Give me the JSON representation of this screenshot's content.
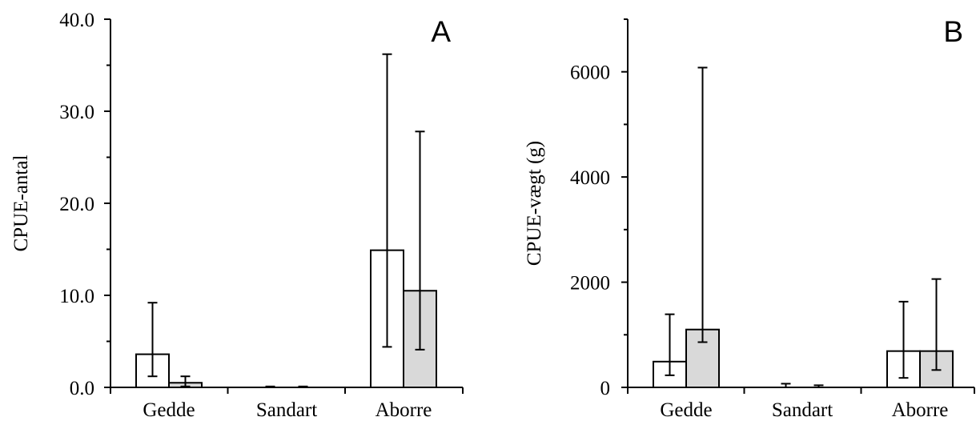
{
  "colors": {
    "series_1": "#ffffff",
    "series_2": "#d9d9d9",
    "stroke": "#000000"
  },
  "chart_data": [
    {
      "type": "bar",
      "panel_label": "A",
      "ylabel": "CPUE-antal",
      "xlabel": "",
      "categories": [
        "Gedde",
        "Sandart",
        "Aborre"
      ],
      "ylim": [
        0,
        40
      ],
      "yticks": [
        0,
        10,
        20,
        30,
        40
      ],
      "ytick_labels": [
        "0.0",
        "10.0",
        "20.0",
        "30.0",
        "40.0"
      ],
      "series": [
        {
          "values": [
            3.6,
            0.0,
            14.9
          ],
          "error_low": [
            1.2,
            0.0,
            4.4
          ],
          "error_high": [
            9.2,
            0.1,
            36.2
          ]
        },
        {
          "values": [
            0.5,
            0.0,
            10.5
          ],
          "error_low": [
            0.1,
            0.0,
            4.1
          ],
          "error_high": [
            1.2,
            0.1,
            27.8
          ]
        }
      ],
      "grid": false
    },
    {
      "type": "bar",
      "panel_label": "B",
      "ylabel": "CPUE-vægt (g)",
      "xlabel": "",
      "categories": [
        "Gedde",
        "Sandart",
        "Aborre"
      ],
      "ylim": [
        0,
        7000
      ],
      "yticks": [
        0,
        2000,
        4000,
        6000
      ],
      "ytick_labels": [
        "0",
        "2000",
        "4000",
        "6000"
      ],
      "series": [
        {
          "values": [
            490,
            0,
            690
          ],
          "error_low": [
            230,
            0,
            180
          ],
          "error_high": [
            1390,
            70,
            1630
          ]
        },
        {
          "values": [
            1100,
            0,
            690
          ],
          "error_low": [
            860,
            0,
            330
          ],
          "error_high": [
            6080,
            40,
            2060
          ]
        }
      ],
      "grid": false
    }
  ]
}
